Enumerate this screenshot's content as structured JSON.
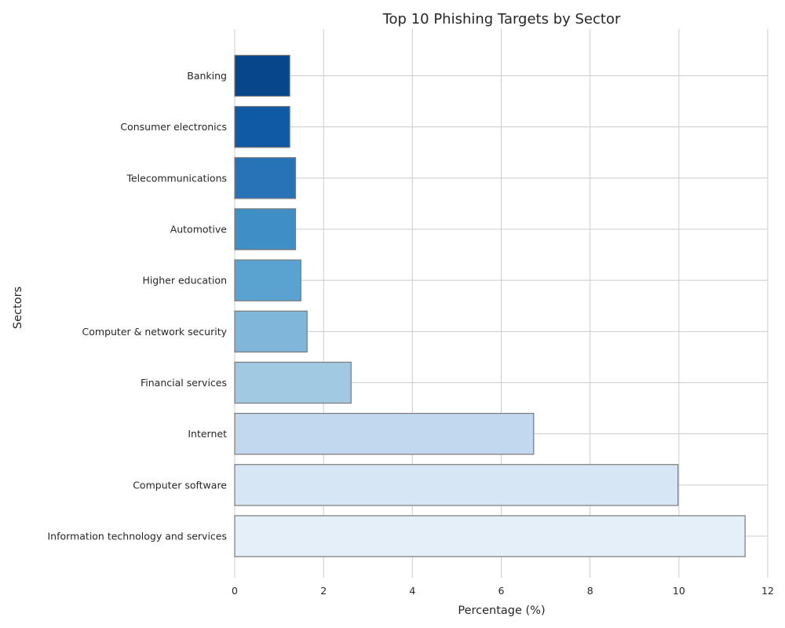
{
  "chart_data": {
    "type": "bar",
    "orientation": "horizontal",
    "title": "Top 10 Phishing Targets by Sector",
    "xlabel": "Percentage (%)",
    "ylabel": "Sectors",
    "xlim": [
      0,
      12
    ],
    "xticks": [
      0,
      2,
      4,
      6,
      8,
      10,
      12
    ],
    "grid": true,
    "categories": [
      "Banking",
      "Consumer electronics",
      "Telecommunications",
      "Automotive",
      "Higher education",
      "Computer & network security",
      "Financial services",
      "Internet",
      "Computer software",
      "Information technology and services"
    ],
    "values": [
      1.24,
      1.24,
      1.37,
      1.37,
      1.49,
      1.63,
      2.62,
      6.73,
      9.98,
      11.49
    ],
    "colors": [
      "#08468b",
      "#1059a5",
      "#2873b7",
      "#3f8fc6",
      "#5aa2cf",
      "#7fb6d9",
      "#a2c9e2",
      "#c2d8ee",
      "#d6e6f4",
      "#e4eff9"
    ]
  }
}
